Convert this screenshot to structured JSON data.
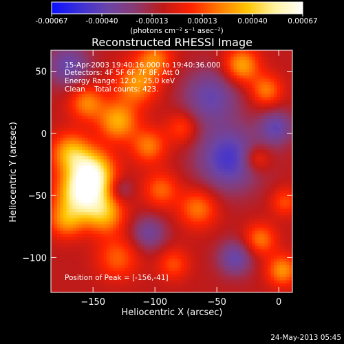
{
  "colorbar": {
    "tick_labels": [
      "-0.00067",
      "-0.00040",
      "-0.00013",
      "0.00013",
      "0.00040",
      "0.00067"
    ],
    "unit_label": "(photons cm⁻² s⁻¹ asec⁻²)",
    "gradient_stops": [
      "#0a10ff",
      "#3b30d8",
      "#6a45a8",
      "#8a3a70",
      "#c01a18",
      "#ff2200",
      "#ff7a00",
      "#ffc400",
      "#fff2a0",
      "#ffffff"
    ]
  },
  "title": "Reconstructed RHESSI Image",
  "info": {
    "time": "15-Apr-2003 19:40:16.000 to 19:40:36.000",
    "detectors": "Detectors: 4F 5F 6F 7F 8F, Att 0",
    "energy": "Energy Range: 12.0 - 25.0 keV",
    "clean_counts": "Clean    Total counts: 423.",
    "peak": "Position of Peak = [-156,-41]"
  },
  "footer": {
    "date": "24-May-2013 05:45"
  },
  "chart_data": {
    "type": "heatmap",
    "title": "Reconstructed RHESSI Image",
    "xlabel": "Heliocentric X (arcsec)",
    "ylabel": "Heliocentric Y (arcsec)",
    "xlim": [
      -184,
      11
    ],
    "ylim": [
      -128,
      67
    ],
    "x_ticks": [
      -150,
      -100,
      -50,
      0
    ],
    "y_ticks": [
      50,
      0,
      -50,
      -100
    ],
    "color_range": [
      -0.00067,
      0.00067
    ],
    "units": "photons cm^-2 s^-1 asec^-2",
    "peak_position": [
      -156,
      -41
    ],
    "blobs": [
      {
        "x": -158,
        "y": -48,
        "sigma": 14,
        "value": 0.00067
      },
      {
        "x": -150,
        "y": -30,
        "sigma": 12,
        "value": 0.0005
      },
      {
        "x": -168,
        "y": -15,
        "sigma": 11,
        "value": 0.0004
      },
      {
        "x": -140,
        "y": -65,
        "sigma": 11,
        "value": 0.00035
      },
      {
        "x": -172,
        "y": -70,
        "sigma": 10,
        "value": 0.0003
      },
      {
        "x": -130,
        "y": 10,
        "sigma": 11,
        "value": 0.0004
      },
      {
        "x": -155,
        "y": 25,
        "sigma": 10,
        "value": 0.00032
      },
      {
        "x": -115,
        "y": 40,
        "sigma": 12,
        "value": 0.00035
      },
      {
        "x": -100,
        "y": 60,
        "sigma": 10,
        "value": 0.0003
      },
      {
        "x": -105,
        "y": -10,
        "sigma": 10,
        "value": 0.0003
      },
      {
        "x": -95,
        "y": -45,
        "sigma": 10,
        "value": 0.00026
      },
      {
        "x": -130,
        "y": -100,
        "sigma": 12,
        "value": 0.00025
      },
      {
        "x": -85,
        "y": -105,
        "sigma": 9,
        "value": 0.00022
      },
      {
        "x": -65,
        "y": -60,
        "sigma": 11,
        "value": 0.0003
      },
      {
        "x": -78,
        "y": 5,
        "sigma": 9,
        "value": 0.00022
      },
      {
        "x": -30,
        "y": 55,
        "sigma": 10,
        "value": 0.0004
      },
      {
        "x": -10,
        "y": 35,
        "sigma": 9,
        "value": 0.0003
      },
      {
        "x": -18,
        "y": -20,
        "sigma": 8,
        "value": 0.00025
      },
      {
        "x": -15,
        "y": -85,
        "sigma": 9,
        "value": 0.0003
      },
      {
        "x": 3,
        "y": -110,
        "sigma": 9,
        "value": 0.00035
      },
      {
        "x": 5,
        "y": -55,
        "sigma": 8,
        "value": 0.00022
      },
      {
        "x": -40,
        "y": -20,
        "sigma": 18,
        "value": -0.0004
      },
      {
        "x": -55,
        "y": 30,
        "sigma": 16,
        "value": -0.0003
      },
      {
        "x": -170,
        "y": 55,
        "sigma": 12,
        "value": -0.0003
      },
      {
        "x": -105,
        "y": -80,
        "sigma": 10,
        "value": -0.00025
      },
      {
        "x": -35,
        "y": -100,
        "sigma": 10,
        "value": -0.0003
      },
      {
        "x": -2,
        "y": 5,
        "sigma": 10,
        "value": -0.0003
      },
      {
        "x": -128,
        "y": -45,
        "sigma": 7,
        "value": -0.00018
      }
    ]
  }
}
